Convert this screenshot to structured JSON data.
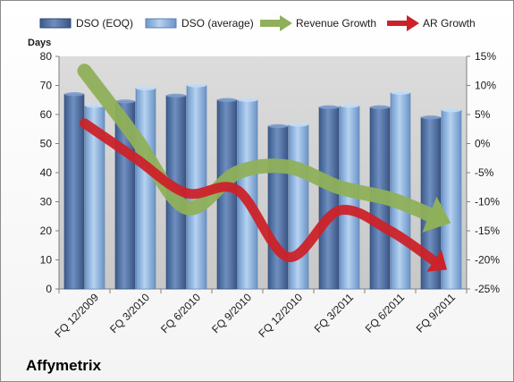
{
  "chart_data": {
    "type": "bar",
    "title": "Affymetrix",
    "ylabel": "Days",
    "ylim": [
      0,
      80
    ],
    "y2lim": [
      -25,
      15
    ],
    "yticks": [
      "0",
      "10",
      "20",
      "30",
      "40",
      "50",
      "60",
      "70",
      "80"
    ],
    "y2ticks": [
      "-25%",
      "-20%",
      "-15%",
      "-10%",
      "-5%",
      "0%",
      "5%",
      "10%",
      "15%"
    ],
    "categories": [
      "FQ 12/2009",
      "FQ 3/2010",
      "FQ 6/2010",
      "FQ 9/2010",
      "FQ 12/2010",
      "FQ 3/2011",
      "FQ 6/2011",
      "FQ 9/2011"
    ],
    "series": [
      {
        "name": "DSO (EOQ)",
        "kind": "bar",
        "axis": "left",
        "color": "#4f6fa0",
        "values": [
          67,
          64.5,
          66.5,
          65,
          56,
          62.5,
          62.5,
          59
        ]
      },
      {
        "name": "DSO (average)",
        "kind": "bar",
        "axis": "left",
        "color": "#8db4e2",
        "values": [
          63,
          69,
          70,
          65,
          56.5,
          63,
          67.5,
          61.5
        ]
      },
      {
        "name": "Revenue Growth",
        "kind": "arrow",
        "axis": "right",
        "color": "#8fb05a",
        "values": [
          12.5,
          1,
          -11,
          -5,
          -4,
          -7.5,
          -9.5,
          -13
        ]
      },
      {
        "name": "AR Growth",
        "kind": "arrow",
        "axis": "right",
        "color": "#cc2229",
        "values": [
          3.5,
          -2.5,
          -8.5,
          -8,
          -19.5,
          -11.5,
          -15,
          -21
        ]
      }
    ],
    "legend_position": "top",
    "grid": false
  }
}
